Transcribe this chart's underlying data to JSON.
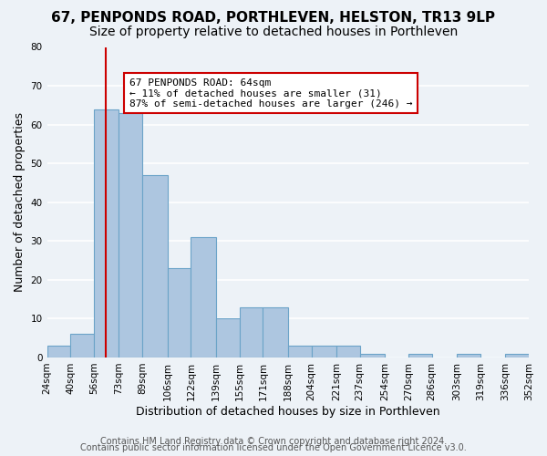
{
  "title": "67, PENPONDS ROAD, PORTHLEVEN, HELSTON, TR13 9LP",
  "subtitle": "Size of property relative to detached houses in Porthleven",
  "xlabel": "Distribution of detached houses by size in Porthleven",
  "ylabel": "Number of detached properties",
  "bin_edges": [
    24,
    40,
    56,
    73,
    89,
    106,
    122,
    139,
    155,
    171,
    188,
    204,
    221,
    237,
    254,
    270,
    286,
    303,
    319,
    336,
    352
  ],
  "bin_labels": [
    "24sqm",
    "40sqm",
    "56sqm",
    "73sqm",
    "89sqm",
    "106sqm",
    "122sqm",
    "139sqm",
    "155sqm",
    "171sqm",
    "188sqm",
    "204sqm",
    "221sqm",
    "237sqm",
    "254sqm",
    "270sqm",
    "286sqm",
    "303sqm",
    "319sqm",
    "336sqm",
    "352sqm"
  ],
  "counts": [
    3,
    6,
    64,
    63,
    47,
    23,
    31,
    10,
    13,
    13,
    3,
    3,
    3,
    1,
    0,
    1,
    0,
    1,
    0,
    1
  ],
  "bar_color": "#adc6e0",
  "bar_edge_color": "#6ba3c8",
  "property_line_x": 64,
  "property_line_color": "#cc0000",
  "annotation_text": "67 PENPONDS ROAD: 64sqm\n← 11% of detached houses are smaller (31)\n87% of semi-detached houses are larger (246) →",
  "annotation_box_color": "#ffffff",
  "annotation_box_edge": "#cc0000",
  "ylim": [
    0,
    80
  ],
  "yticks": [
    0,
    10,
    20,
    30,
    40,
    50,
    60,
    70,
    80
  ],
  "footer1": "Contains HM Land Registry data © Crown copyright and database right 2024.",
  "footer2": "Contains public sector information licensed under the Open Government Licence v3.0.",
  "background_color": "#edf2f7",
  "grid_color": "#ffffff",
  "title_fontsize": 11,
  "subtitle_fontsize": 10,
  "axis_fontsize": 9,
  "tick_fontsize": 7.5,
  "footer_fontsize": 7
}
